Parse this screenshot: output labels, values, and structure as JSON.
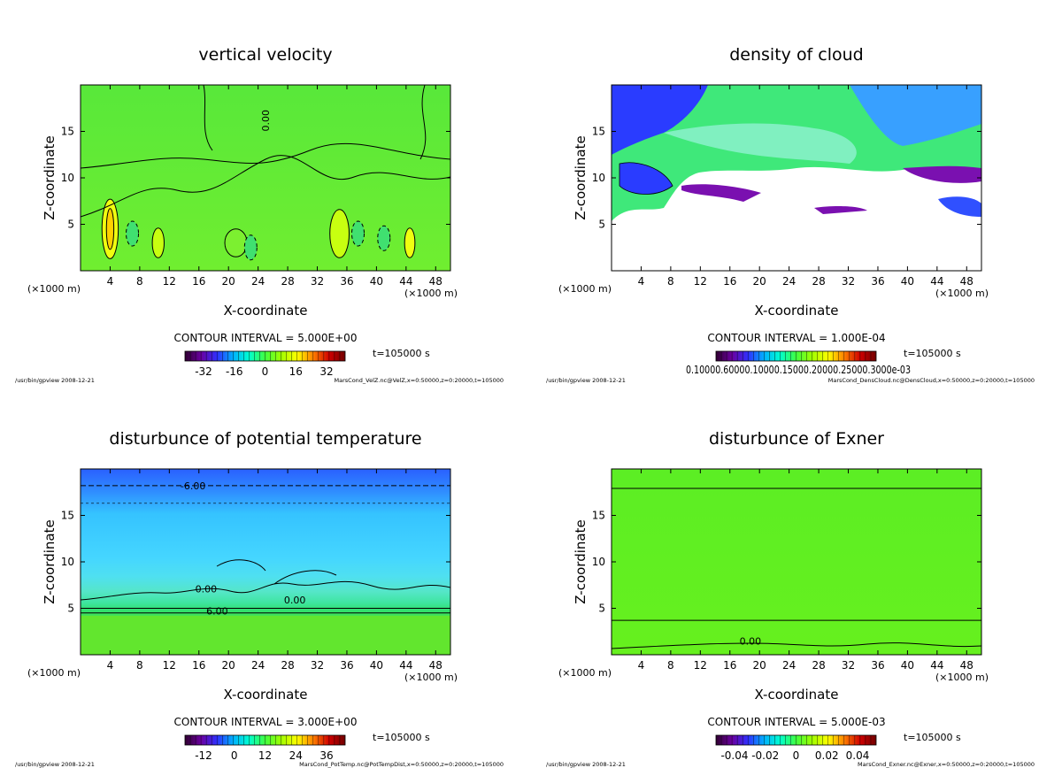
{
  "chart_data": [
    {
      "type": "heatmap",
      "title": "vertical velocity",
      "xlabel": "X-coordinate",
      "ylabel": "Z-coordinate",
      "x_unit": "(×1000 m)",
      "xlim": [
        0,
        50
      ],
      "ylim": [
        0,
        20
      ],
      "x_ticks": [
        4,
        8,
        12,
        16,
        20,
        24,
        28,
        32,
        36,
        40,
        44,
        48
      ],
      "y_ticks": [
        5,
        10,
        15
      ],
      "contour_interval": "CONTOUR INTERVAL = 5.000E+00",
      "time": "t=105000 s",
      "colorbar_ticks": [
        "-32",
        "-16",
        "0",
        "16",
        "32"
      ],
      "colormap": [
        "#300030",
        "#6a00a0",
        "#3030ff",
        "#00b0ff",
        "#00ffd0",
        "#40ff40",
        "#a0ff00",
        "#ffff00",
        "#ff8000",
        "#d00000",
        "#700000"
      ],
      "contour_labels": [
        "0.00"
      ],
      "footer_left": "/usr/bin/gpview  2008-12-21",
      "footer_right": "MarsCond_VelZ.nc@VelZ,x=0:50000,z=0:20000,t=105000"
    },
    {
      "type": "heatmap",
      "title": "density of cloud",
      "xlabel": "X-coordinate",
      "ylabel": "Z-coordinate",
      "x_unit": "(×1000 m)",
      "xlim": [
        0,
        50
      ],
      "ylim": [
        0,
        20
      ],
      "x_ticks": [
        4,
        8,
        12,
        16,
        20,
        24,
        28,
        32,
        36,
        40,
        44,
        48
      ],
      "y_ticks": [
        5,
        10,
        15
      ],
      "contour_interval": "CONTOUR INTERVAL = 1.000E-04",
      "time": "t=105000 s",
      "colorbar_ticks_text": "0.10000.60000.10000.15000.20000.25000.3000e-03",
      "colormap": [
        "#300030",
        "#6a00a0",
        "#3030ff",
        "#00b0ff",
        "#00ffd0",
        "#40ff40",
        "#a0ff00",
        "#ffff00",
        "#ff8000",
        "#d00000",
        "#700000"
      ],
      "footer_left": "/usr/bin/gpview  2008-12-21",
      "footer_right": "MarsCond_DensCloud.nc@DensCloud,x=0:50000,z=0:20000,t=105000"
    },
    {
      "type": "heatmap",
      "title": "disturbunce of potential temperature",
      "xlabel": "X-coordinate",
      "ylabel": "Z-coordinate",
      "x_unit": "(×1000 m)",
      "xlim": [
        0,
        50
      ],
      "ylim": [
        0,
        20
      ],
      "x_ticks": [
        4,
        8,
        12,
        16,
        20,
        24,
        28,
        32,
        36,
        40,
        44,
        48
      ],
      "y_ticks": [
        5,
        10,
        15
      ],
      "contour_interval": "CONTOUR INTERVAL = 3.000E+00",
      "time": "t=105000 s",
      "colorbar_ticks": [
        "-12",
        "0",
        "12",
        "24",
        "36"
      ],
      "colormap": [
        "#300030",
        "#6a00a0",
        "#3030ff",
        "#00b0ff",
        "#00ffd0",
        "#40ff40",
        "#a0ff00",
        "#ffff00",
        "#ff8000",
        "#d00000",
        "#700000"
      ],
      "contour_labels": [
        "-6.00",
        "0.00",
        "0.00",
        "6.00"
      ],
      "footer_left": "/usr/bin/gpview  2008-12-21",
      "footer_right": "MarsCond_PotTemp.nc@PotTempDist,x=0:50000,z=0:20000,t=105000"
    },
    {
      "type": "heatmap",
      "title": "disturbunce of Exner",
      "xlabel": "X-coordinate",
      "ylabel": "Z-coordinate",
      "x_unit": "(×1000 m)",
      "xlim": [
        0,
        50
      ],
      "ylim": [
        0,
        20
      ],
      "x_ticks": [
        4,
        8,
        12,
        16,
        20,
        24,
        28,
        32,
        36,
        40,
        44,
        48
      ],
      "y_ticks": [
        5,
        10,
        15
      ],
      "contour_interval": "CONTOUR INTERVAL = 5.000E-03",
      "time": "t=105000 s",
      "colorbar_ticks": [
        "-0.04",
        "-0.02",
        "0",
        "0.02",
        "0.04"
      ],
      "colormap": [
        "#300030",
        "#6a00a0",
        "#3030ff",
        "#00b0ff",
        "#00ffd0",
        "#40ff40",
        "#a0ff00",
        "#ffff00",
        "#ff8000",
        "#d00000",
        "#700000"
      ],
      "contour_labels": [
        "0.00"
      ],
      "footer_left": "/usr/bin/gpview  2008-12-21",
      "footer_right": "MarsCond_Exner.nc@Exner,x=0:50000,z=0:20000,t=105000"
    }
  ]
}
